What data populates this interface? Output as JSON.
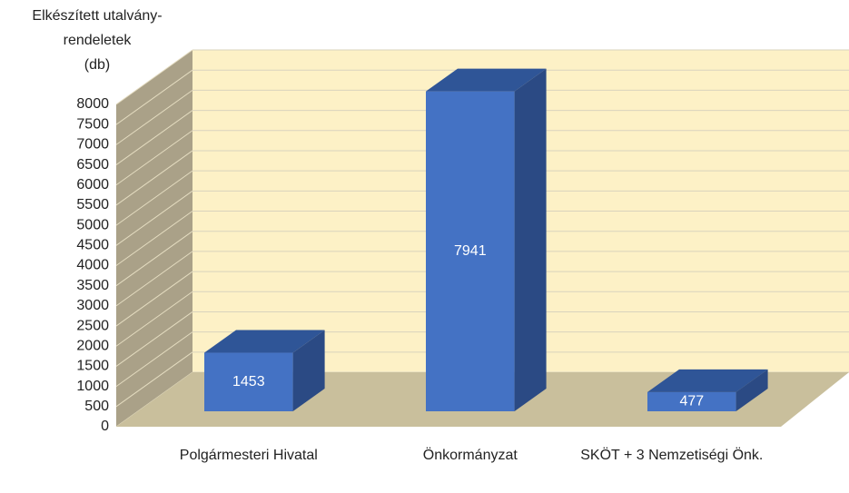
{
  "chart_data": {
    "type": "bar3d",
    "y_label": [
      "Elkészített utalvány-",
      "rendeletek",
      "(db)"
    ],
    "categories": [
      "Polgármesteri Hivatal",
      "Önkormányzat",
      "SKÖT + 3 Nemzetiségi Önk."
    ],
    "values": [
      1453,
      7941,
      477
    ],
    "color": "#4472c4",
    "ylim": [
      0,
      8000
    ],
    "yticks": [
      0,
      500,
      1000,
      1500,
      2000,
      2500,
      3000,
      3500,
      4000,
      4500,
      5000,
      5500,
      6000,
      6500,
      7000,
      7500,
      8000
    ],
    "grid": true
  }
}
